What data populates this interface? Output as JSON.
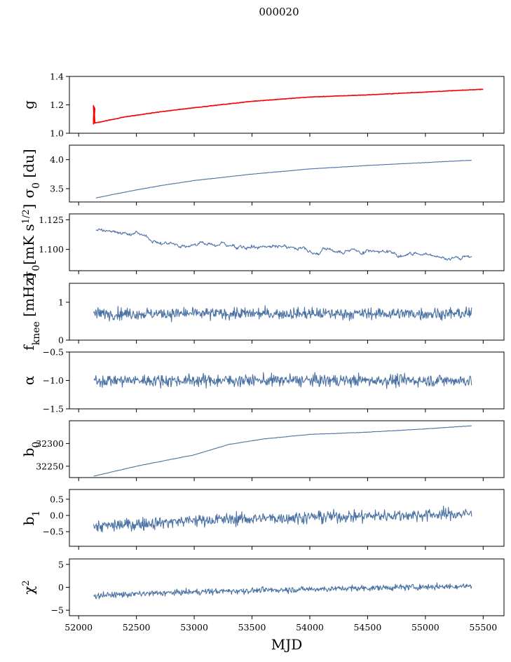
{
  "suptitle": "000020",
  "colors": {
    "series": "#4c72a4",
    "fit": "#ff0000",
    "frame": "#000000"
  },
  "chart_data": {
    "type": "line",
    "shared_x": {
      "label": "MJD",
      "range": [
        51920,
        55680
      ],
      "ticks": [
        52000,
        52500,
        53000,
        53500,
        54000,
        54500,
        55000,
        55500
      ],
      "tick_labels": [
        "52000",
        "52500",
        "53000",
        "53500",
        "54000",
        "54500",
        "55000",
        "55500"
      ]
    },
    "panels": [
      {
        "ylabel": "g",
        "ylim": [
          1.0,
          1.4
        ],
        "yticks": [
          1.0,
          1.2,
          1.4
        ],
        "ytick_labels": [
          "1.0",
          "1.2",
          "1.4"
        ],
        "series": [
          {
            "kind": "trend",
            "x_range": [
              52130,
              55500
            ],
            "points": [
              [
                52130,
                1.07
              ],
              [
                52400,
                1.115
              ],
              [
                52700,
                1.15
              ],
              [
                53000,
                1.18
              ],
              [
                53500,
                1.225
              ],
              [
                54000,
                1.255
              ],
              [
                54500,
                1.27
              ],
              [
                55000,
                1.29
              ],
              [
                55500,
                1.31
              ]
            ],
            "noise": 0.002,
            "n": 500
          },
          {
            "kind": "trend",
            "fit": true,
            "x_range": [
              52130,
              55500
            ],
            "points": [
              [
                52130,
                1.07
              ],
              [
                52400,
                1.115
              ],
              [
                52700,
                1.15
              ],
              [
                53000,
                1.18
              ],
              [
                53500,
                1.225
              ],
              [
                54000,
                1.255
              ],
              [
                54500,
                1.27
              ],
              [
                55000,
                1.29
              ],
              [
                55500,
                1.31
              ]
            ],
            "noise": 0.0015,
            "n": 500,
            "spike": [
              52140,
              1.065,
              1.195
            ]
          }
        ]
      },
      {
        "ylabel": "σ0 [du]",
        "ylim": [
          3.27,
          4.25
        ],
        "yticks": [
          3.5,
          4.0
        ],
        "ytick_labels": [
          "3.5",
          "4.0"
        ],
        "series": [
          {
            "kind": "trend",
            "x_range": [
              52150,
              55400
            ],
            "points": [
              [
                52150,
                3.34
              ],
              [
                52400,
                3.44
              ],
              [
                52700,
                3.55
              ],
              [
                53000,
                3.64
              ],
              [
                53500,
                3.75
              ],
              [
                54000,
                3.84
              ],
              [
                54500,
                3.9
              ],
              [
                55000,
                3.95
              ],
              [
                55400,
                3.99
              ]
            ],
            "noise": 0.003,
            "n": 600
          }
        ]
      },
      {
        "ylabel": "σ0[mK s^1/2]",
        "ylim": [
          1.082,
          1.13
        ],
        "yticks": [
          1.1,
          1.125
        ],
        "ytick_labels": [
          "1.100",
          "1.125"
        ],
        "series": [
          {
            "kind": "trend",
            "x_range": [
              52150,
              55400
            ],
            "points": [
              [
                52150,
                1.117
              ],
              [
                52500,
                1.113
              ],
              [
                52700,
                1.107
              ],
              [
                53000,
                1.105
              ],
              [
                53500,
                1.103
              ],
              [
                54000,
                1.1
              ],
              [
                54500,
                1.099
              ],
              [
                55000,
                1.096
              ],
              [
                55200,
                1.093
              ],
              [
                55400,
                1.095
              ]
            ],
            "noise": 0.0012,
            "n": 600,
            "walk": true
          }
        ]
      },
      {
        "ylabel": "fknee [mHz]",
        "ylim": [
          0.0,
          1.5
        ],
        "yticks": [
          0,
          1
        ],
        "ytick_labels": [
          "0",
          "1"
        ],
        "series": [
          {
            "kind": "noise",
            "x_range": [
              52130,
              55400
            ],
            "mean": 0.7,
            "amp": 0.13,
            "n": 700
          }
        ]
      },
      {
        "ylabel": "α",
        "ylim": [
          -1.5,
          -0.5
        ],
        "yticks": [
          -1.5,
          -1.0,
          -0.5
        ],
        "ytick_labels": [
          "−1.5",
          "−1.0",
          "−0.5"
        ],
        "series": [
          {
            "kind": "noise",
            "x_range": [
              52130,
              55400
            ],
            "mean": -1.0,
            "amp": 0.09,
            "n": 700
          }
        ]
      },
      {
        "ylabel": "b0",
        "ylim": [
          32225,
          32350
        ],
        "yticks": [
          32250,
          32300
        ],
        "ytick_labels": [
          "32250",
          "32300"
        ],
        "series": [
          {
            "kind": "trend",
            "x_range": [
              52130,
              55400
            ],
            "points": [
              [
                52130,
                32228
              ],
              [
                52500,
                32250
              ],
              [
                52800,
                32265
              ],
              [
                53000,
                32275
              ],
              [
                53300,
                32298
              ],
              [
                53600,
                32310
              ],
              [
                54000,
                32320
              ],
              [
                54500,
                32325
              ],
              [
                55000,
                32332
              ],
              [
                55400,
                32339
              ]
            ],
            "noise": 0.4,
            "n": 600
          }
        ]
      },
      {
        "ylabel": "b1",
        "ylim": [
          -0.95,
          0.8
        ],
        "yticks": [
          -0.5,
          0.0,
          0.5
        ],
        "ytick_labels": [
          "−0.5",
          "0.0",
          "0.5"
        ],
        "series": [
          {
            "kind": "noise",
            "x_range": [
              52130,
              55400
            ],
            "mean_points": [
              [
                52130,
                -0.35
              ],
              [
                53000,
                -0.15
              ],
              [
                54000,
                -0.05
              ],
              [
                55400,
                0.05
              ]
            ],
            "amp": 0.16,
            "n": 700
          }
        ]
      },
      {
        "ylabel": "χ2",
        "ylim": [
          -6.2,
          6.2
        ],
        "yticks": [
          -5,
          0,
          5
        ],
        "ytick_labels": [
          "−5",
          "0",
          "5"
        ],
        "series": [
          {
            "kind": "noise",
            "x_range": [
              52130,
              55400
            ],
            "mean_points": [
              [
                52130,
                -1.8
              ],
              [
                53000,
                -1.0
              ],
              [
                54000,
                -0.4
              ],
              [
                55400,
                0.3
              ]
            ],
            "amp": 0.55,
            "n": 700
          }
        ]
      }
    ]
  }
}
